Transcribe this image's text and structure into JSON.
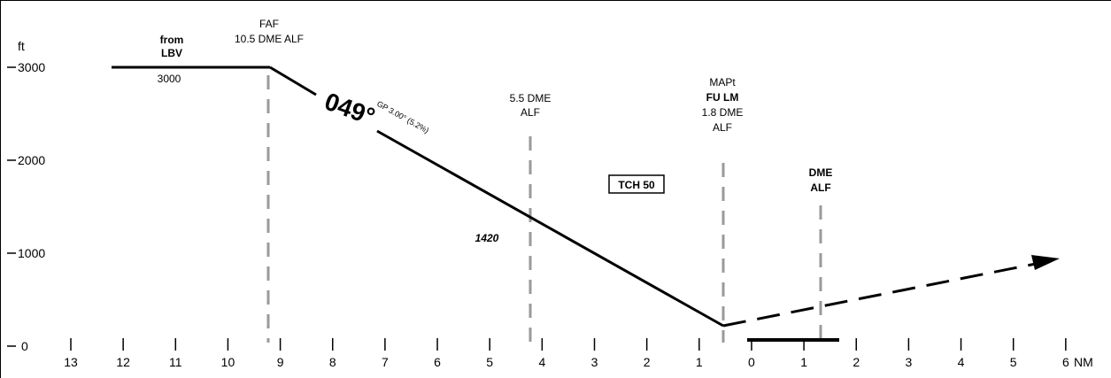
{
  "units": {
    "altitude": "ft",
    "distance": "NM"
  },
  "altitude_ticks": [
    "3000",
    "2000",
    "1000",
    "0"
  ],
  "distance_ticks": [
    "13",
    "12",
    "11",
    "10",
    "9",
    "8",
    "7",
    "6",
    "5",
    "4",
    "3",
    "2",
    "1",
    "0",
    "1",
    "2",
    "3",
    "4",
    "5",
    "6"
  ],
  "initial_segment": {
    "from_prefix": "from",
    "from_fix": "LBV",
    "altitude": "3000"
  },
  "faf": {
    "label": "FAF",
    "distance": "10.5 DME ALF"
  },
  "course": "049°",
  "glide_path": "GP 3.00° (5.2%)",
  "stepdown_fix": {
    "line1": "5.5 DME",
    "line2": "ALF"
  },
  "stepdown_altitude": "1420",
  "tch": "TCH 50",
  "mapt": {
    "label": "MAPt",
    "name": "FU LM",
    "distance": "1.8 DME",
    "station": "ALF"
  },
  "dme_fix": {
    "line1": "DME",
    "line2": "ALF"
  },
  "colors": {
    "line": "#000000",
    "fix_line": "#9a9a9a"
  }
}
